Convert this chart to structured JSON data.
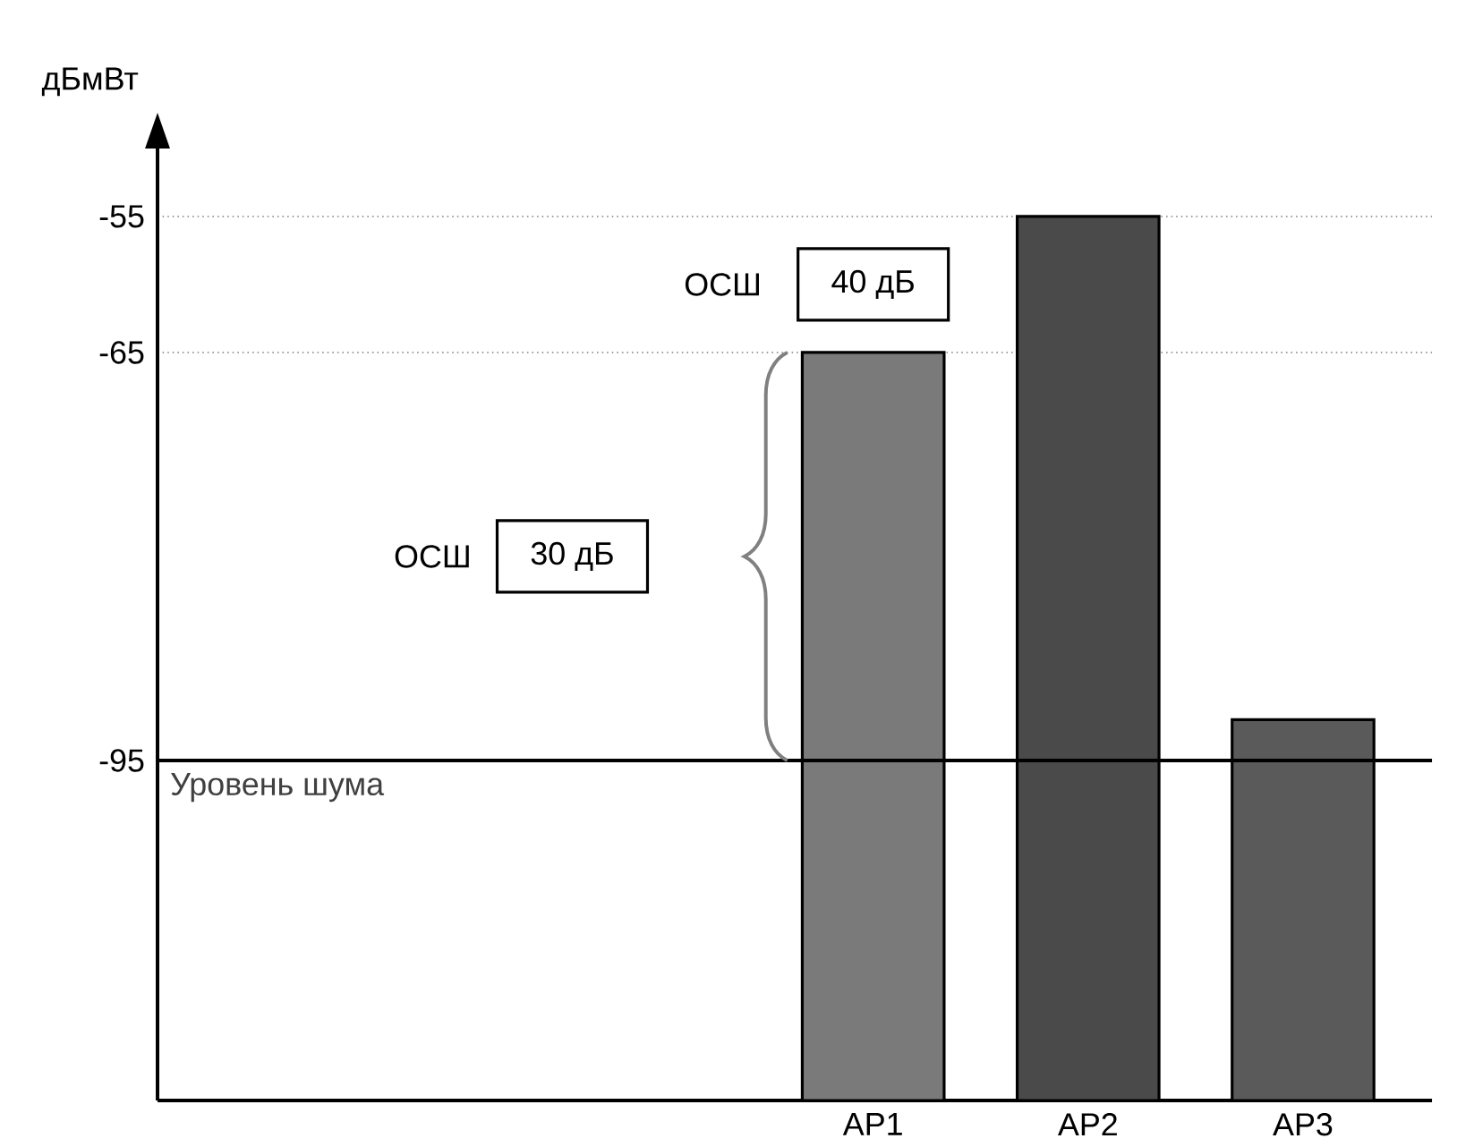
{
  "chart_data": {
    "type": "bar",
    "ylabel": "дБмВт",
    "categories": [
      null,
      null,
      null,
      "AP1",
      "AP2",
      "AP3"
    ],
    "values": [
      null,
      null,
      null,
      55,
      65,
      28
    ],
    "base": [
      null,
      null,
      null,
      -120,
      -120,
      -120
    ],
    "colors": [
      "#777777",
      "#777777",
      "#777777",
      "#7a7a7a",
      "#4a4a4a",
      "#5a5a5a"
    ],
    "ylim": [
      -120,
      -50
    ],
    "yticks": [
      -95,
      -65,
      -55
    ],
    "grid": "y",
    "ref_lines": [
      {
        "axis": "y",
        "value": -95,
        "label": "Уровень шума",
        "color": "#000000",
        "line_style": "solid"
      }
    ],
    "annotations": [
      "ОСШ",
      "30 дБ",
      "ОСШ",
      "40 дБ"
    ]
  }
}
